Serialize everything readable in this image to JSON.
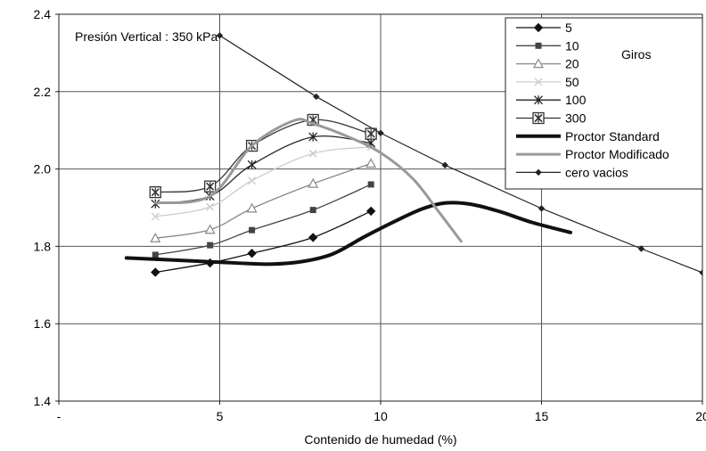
{
  "chart_data": {
    "type": "line",
    "title": "",
    "annotation": "Presión Vertical : 350 kPa",
    "xlabel": "Contenido de humedad (%)",
    "ylabel": "",
    "xlim": [
      0,
      20
    ],
    "ylim": [
      1.4,
      2.4
    ],
    "x_ticks": [
      {
        "value": 0,
        "label": "-"
      },
      {
        "value": 5,
        "label": "5"
      },
      {
        "value": 10,
        "label": "10"
      },
      {
        "value": 15,
        "label": "15"
      },
      {
        "value": 20,
        "label": "20"
      }
    ],
    "y_ticks": [
      {
        "value": 1.4,
        "label": "1.4"
      },
      {
        "value": 1.6,
        "label": "1.6"
      },
      {
        "value": 1.8,
        "label": "1.8"
      },
      {
        "value": 2.0,
        "label": "2.0"
      },
      {
        "value": 2.2,
        "label": "2.2"
      },
      {
        "value": 2.4,
        "label": "2.4"
      }
    ],
    "grid": true,
    "legend_position": "top-right",
    "legend_group_label": "Giros",
    "series": [
      {
        "name": "5",
        "color": "#111111",
        "stroke_width": 1.3,
        "marker": "diamond",
        "points": [
          [
            3.0,
            1.733
          ],
          [
            4.7,
            1.757
          ],
          [
            6.0,
            1.782
          ],
          [
            7.9,
            1.823
          ],
          [
            9.7,
            1.891
          ]
        ]
      },
      {
        "name": "10",
        "color": "#444444",
        "stroke_width": 1.3,
        "marker": "square",
        "points": [
          [
            3.0,
            1.778
          ],
          [
            4.7,
            1.803
          ],
          [
            6.0,
            1.842
          ],
          [
            7.9,
            1.894
          ],
          [
            9.7,
            1.96
          ]
        ]
      },
      {
        "name": "20",
        "color": "#888888",
        "stroke_width": 1.3,
        "marker": "triangle-open",
        "points": [
          [
            3.0,
            1.821
          ],
          [
            4.7,
            1.843
          ],
          [
            6.0,
            1.898
          ],
          [
            7.9,
            1.962
          ],
          [
            9.7,
            2.014
          ]
        ]
      },
      {
        "name": "50",
        "color": "#cccccc",
        "stroke_width": 1.3,
        "marker": "x",
        "points": [
          [
            3.0,
            1.877
          ],
          [
            4.7,
            1.902
          ],
          [
            6.0,
            1.97
          ],
          [
            7.9,
            2.04
          ],
          [
            9.7,
            2.057
          ]
        ]
      },
      {
        "name": "100",
        "color": "#222222",
        "stroke_width": 1.3,
        "marker": "asterisk",
        "points": [
          [
            3.0,
            1.91
          ],
          [
            4.7,
            1.93
          ],
          [
            6.0,
            2.011
          ],
          [
            7.9,
            2.083
          ],
          [
            9.7,
            2.067
          ]
        ]
      },
      {
        "name": "300",
        "color": "#333333",
        "stroke_width": 1.3,
        "marker": "boxed-x",
        "points": [
          [
            3.0,
            1.94
          ],
          [
            4.7,
            1.955
          ],
          [
            6.0,
            2.06
          ],
          [
            7.9,
            2.127
          ],
          [
            9.7,
            2.091
          ]
        ]
      },
      {
        "name": "Proctor Standard",
        "color": "#111111",
        "stroke_width": 4,
        "marker": "none",
        "points": [
          [
            2.1,
            1.77
          ],
          [
            4.0,
            1.763
          ],
          [
            5.5,
            1.757
          ],
          [
            6.5,
            1.754
          ],
          [
            7.5,
            1.76
          ],
          [
            8.5,
            1.78
          ],
          [
            9.5,
            1.825
          ],
          [
            10.5,
            1.867
          ],
          [
            11.3,
            1.897
          ],
          [
            12.0,
            1.912
          ],
          [
            12.8,
            1.909
          ],
          [
            13.7,
            1.89
          ],
          [
            14.7,
            1.862
          ],
          [
            15.9,
            1.836
          ]
        ]
      },
      {
        "name": "Proctor Modificado",
        "color": "#999999",
        "stroke_width": 3,
        "marker": "none",
        "points": [
          [
            3.0,
            1.912
          ],
          [
            4.7,
            1.93
          ],
          [
            6.0,
            2.06
          ],
          [
            7.3,
            2.125
          ],
          [
            7.9,
            2.117
          ],
          [
            9.0,
            2.083
          ],
          [
            10.0,
            2.042
          ],
          [
            11.0,
            1.975
          ],
          [
            11.8,
            1.89
          ],
          [
            12.5,
            1.813
          ]
        ]
      },
      {
        "name": "cero vacios",
        "color": "#222222",
        "stroke_width": 1.2,
        "marker": "small-diamond",
        "points": [
          [
            5.0,
            2.345
          ],
          [
            8.0,
            2.187
          ],
          [
            10.0,
            2.093
          ],
          [
            12.0,
            2.01
          ],
          [
            15.0,
            1.898
          ],
          [
            18.1,
            1.794
          ],
          [
            20.0,
            1.732
          ]
        ]
      }
    ]
  }
}
